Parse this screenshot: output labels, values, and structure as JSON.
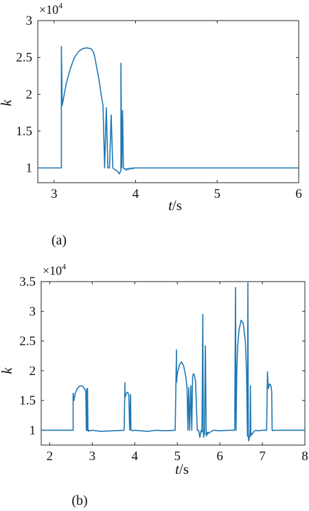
{
  "chart_data": [
    {
      "type": "line",
      "panel_label": "(a)",
      "exponent_label": "×10",
      "exponent_power": "4",
      "xlabel_italic": "t",
      "xlabel_rest": "/s",
      "ylabel": "k",
      "xlim": [
        2.8,
        6.0
      ],
      "ylim": [
        0.8,
        3.0
      ],
      "xticks": [
        3,
        4,
        5,
        6
      ],
      "yticks": [
        1,
        1.5,
        2,
        2.5,
        3
      ],
      "ytick_labels": [
        "1",
        "1.5",
        "2",
        "2.5",
        "3"
      ],
      "line_color": "#1f77b4",
      "series": [
        {
          "x": [
            2.8,
            3.08,
            3.09,
            3.09,
            3.1,
            3.15,
            3.2,
            3.25,
            3.3,
            3.35,
            3.4,
            3.45,
            3.48,
            3.5,
            3.52,
            3.55,
            3.58,
            3.6,
            3.62,
            3.64,
            3.66,
            3.68,
            3.7,
            3.72,
            3.74,
            3.76,
            3.78,
            3.8,
            3.81,
            3.82,
            3.82,
            3.83,
            3.84,
            3.85,
            3.86,
            3.87,
            3.88,
            3.89,
            3.9,
            3.91,
            3.92,
            3.93,
            3.94,
            3.95,
            3.96,
            3.97,
            3.98,
            3.99,
            4.0,
            4.02,
            4.04,
            4.06,
            4.08,
            4.1,
            4.12,
            4.15,
            4.2,
            6.0
          ],
          "y": [
            1.0,
            1.0,
            1.0,
            2.65,
            1.85,
            2.15,
            2.35,
            2.5,
            2.58,
            2.62,
            2.63,
            2.62,
            2.58,
            2.5,
            2.38,
            2.2,
            1.98,
            1.85,
            1.0,
            1.82,
            1.0,
            1.0,
            1.72,
            1.0,
            0.98,
            0.97,
            0.95,
            0.92,
            0.94,
            0.97,
            2.42,
            1.0,
            1.78,
            1.0,
            0.99,
            0.98,
            0.99,
            0.97,
            0.99,
            0.99,
            0.98,
            1.0,
            0.99,
            0.99,
            1.0,
            0.99,
            1.0,
            1.0,
            1.0,
            1.0,
            1.0,
            1.0,
            1.0,
            1.0,
            1.0,
            1.0,
            1.0,
            1.0
          ]
        }
      ]
    },
    {
      "type": "line",
      "panel_label": "(b)",
      "exponent_label": "×10",
      "exponent_power": "4",
      "xlabel_italic": "t",
      "xlabel_rest": "/s",
      "ylabel": "k",
      "xlim": [
        1.8,
        8.0
      ],
      "ylim": [
        0.75,
        3.5
      ],
      "xticks": [
        2,
        3,
        4,
        5,
        6,
        7,
        8
      ],
      "yticks": [
        1,
        1.5,
        2,
        2.5,
        3,
        3.5
      ],
      "ytick_labels": [
        "1",
        "1.5",
        "2",
        "2.5",
        "3",
        "3.5"
      ],
      "line_color": "#1f77b4",
      "series": [
        {
          "x": [
            1.8,
            2.55,
            2.55,
            2.57,
            2.6,
            2.65,
            2.7,
            2.75,
            2.8,
            2.85,
            2.86,
            2.87,
            2.88,
            2.89,
            2.9,
            2.91,
            2.92,
            2.95,
            3.0,
            3.2,
            3.5,
            3.75,
            3.77,
            3.77,
            3.8,
            3.83,
            3.86,
            3.88,
            3.9,
            3.91,
            3.93,
            3.95,
            4.0,
            4.3,
            4.5,
            4.7,
            4.95,
            4.98,
            4.98,
            5.0,
            5.05,
            5.1,
            5.15,
            5.2,
            5.23,
            5.25,
            5.27,
            5.29,
            5.32,
            5.34,
            5.36,
            5.38,
            5.4,
            5.43,
            5.47,
            5.5,
            5.53,
            5.56,
            5.58,
            5.6,
            5.61,
            5.62,
            5.63,
            5.64,
            5.66,
            5.68,
            5.7,
            5.71,
            5.72,
            5.74,
            5.78,
            5.85,
            6.0,
            6.2,
            6.35,
            6.37,
            6.38,
            6.4,
            6.42,
            6.45,
            6.5,
            6.55,
            6.6,
            6.63,
            6.65,
            6.66,
            6.67,
            6.68,
            6.7,
            6.71,
            6.72,
            6.73,
            6.74,
            6.76,
            6.8,
            6.85,
            6.9,
            7.0,
            7.1,
            7.12,
            7.14,
            7.17,
            7.2,
            7.22,
            7.23,
            7.24,
            7.25,
            7.26,
            7.3,
            8.0
          ],
          "y": [
            1.0,
            1.0,
            1.62,
            1.5,
            1.62,
            1.7,
            1.74,
            1.75,
            1.72,
            1.65,
            1.0,
            1.7,
            1.0,
            1.7,
            1.0,
            0.98,
            1.0,
            0.99,
            1.0,
            0.98,
            0.99,
            1.0,
            1.8,
            1.55,
            1.62,
            1.64,
            1.6,
            1.0,
            1.6,
            1.0,
            1.0,
            0.99,
            1.0,
            0.98,
            1.0,
            0.99,
            1.0,
            2.35,
            1.8,
            1.95,
            2.1,
            2.15,
            2.08,
            1.9,
            1.72,
            1.0,
            1.72,
            1.0,
            1.75,
            1.0,
            1.9,
            1.95,
            1.93,
            1.82,
            1.0,
            1.0,
            0.88,
            1.0,
            0.97,
            2.95,
            1.0,
            0.88,
            1.0,
            0.93,
            2.42,
            0.9,
            0.96,
            0.93,
            0.97,
            0.95,
            0.97,
            1.0,
            0.99,
            1.0,
            1.0,
            3.4,
            1.0,
            2.02,
            2.4,
            2.68,
            2.85,
            2.8,
            2.5,
            1.95,
            0.9,
            3.48,
            0.9,
            0.82,
            0.9,
            0.95,
            1.75,
            0.9,
            0.95,
            0.93,
            0.98,
            1.0,
            0.99,
            1.0,
            1.0,
            1.98,
            1.7,
            1.78,
            1.75,
            1.65,
            1.0,
            1.0,
            0.99,
            1.0,
            1.0,
            1.0
          ]
        }
      ]
    }
  ]
}
